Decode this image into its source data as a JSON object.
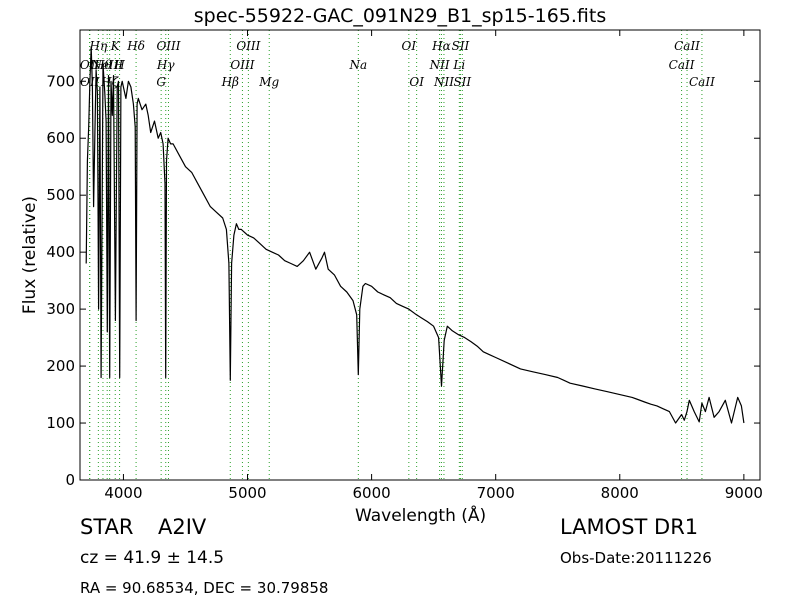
{
  "chart_data": {
    "type": "line",
    "title": "spec-55922-GAC_091N29_B1_sp15-165.fits",
    "xlabel": "Wavelength (Å)",
    "ylabel": "Flux (relative)",
    "xlim": [
      3650,
      9130
    ],
    "ylim": [
      0,
      790
    ],
    "xticks": [
      4000,
      5000,
      6000,
      7000,
      8000,
      9000
    ],
    "yticks": [
      0,
      100,
      200,
      300,
      400,
      500,
      600,
      700
    ],
    "grid": false,
    "line_color": "#000000",
    "marker_color": "#2ca02c",
    "series": [
      {
        "x": [
          3700,
          3710,
          3720,
          3730,
          3740,
          3750,
          3760,
          3770,
          3780,
          3790,
          3800,
          3810,
          3820,
          3835,
          3850,
          3860,
          3870,
          3880,
          3889,
          3900,
          3910,
          3920,
          3935,
          3950,
          3960,
          3970,
          3980,
          3990,
          4000,
          4020,
          4040,
          4060,
          4080,
          4095,
          4102,
          4110,
          4120,
          4150,
          4180,
          4200,
          4220,
          4250,
          4280,
          4300,
          4320,
          4335,
          4341,
          4347,
          4360,
          4380,
          4400,
          4450,
          4500,
          4550,
          4600,
          4650,
          4700,
          4750,
          4800,
          4830,
          4850,
          4861,
          4872,
          4890,
          4910,
          4930,
          4950,
          5000,
          5050,
          5100,
          5150,
          5200,
          5250,
          5300,
          5350,
          5400,
          5450,
          5500,
          5550,
          5600,
          5620,
          5650,
          5700,
          5750,
          5800,
          5850,
          5880,
          5893,
          5905,
          5930,
          5950,
          6000,
          6050,
          6100,
          6150,
          6200,
          6250,
          6300,
          6350,
          6400,
          6450,
          6500,
          6540,
          6563,
          6585,
          6610,
          6650,
          6700,
          6750,
          6800,
          6850,
          6900,
          6950,
          7000,
          7100,
          7200,
          7300,
          7400,
          7500,
          7550,
          7600,
          7700,
          7800,
          7900,
          8000,
          8100,
          8200,
          8250,
          8300,
          8350,
          8400,
          8450,
          8498,
          8520,
          8542,
          8560,
          8600,
          8640,
          8662,
          8690,
          8720,
          8760,
          8800,
          8850,
          8900,
          8950,
          8980,
          9000
        ],
        "y": [
          380,
          560,
          620,
          700,
          760,
          690,
          480,
          610,
          720,
          680,
          300,
          690,
          180,
          730,
          680,
          630,
          260,
          710,
          180,
          700,
          640,
          710,
          280,
          690,
          700,
          180,
          690,
          700,
          690,
          670,
          700,
          690,
          660,
          620,
          280,
          660,
          670,
          650,
          660,
          640,
          610,
          630,
          600,
          610,
          590,
          520,
          180,
          560,
          600,
          590,
          590,
          570,
          550,
          540,
          520,
          500,
          480,
          470,
          460,
          440,
          380,
          175,
          380,
          430,
          450,
          440,
          440,
          430,
          425,
          415,
          405,
          400,
          395,
          385,
          380,
          375,
          385,
          400,
          370,
          390,
          400,
          370,
          360,
          340,
          330,
          315,
          290,
          185,
          300,
          340,
          345,
          340,
          330,
          325,
          320,
          310,
          305,
          300,
          292,
          285,
          278,
          270,
          250,
          165,
          245,
          270,
          262,
          255,
          250,
          243,
          235,
          225,
          220,
          215,
          205,
          195,
          190,
          185,
          180,
          175,
          170,
          165,
          160,
          155,
          150,
          145,
          137,
          133,
          130,
          125,
          120,
          100,
          115,
          105,
          120,
          140,
          120,
          102,
          135,
          120,
          145,
          110,
          120,
          140,
          100,
          145,
          130,
          100
        ]
      }
    ],
    "line_markers": [
      {
        "wavelength": 3727,
        "label": "OII",
        "row": 1
      },
      {
        "wavelength": 3729,
        "label": "OII",
        "row": 2
      },
      {
        "wavelength": 3798,
        "label": "Hη",
        "row": 0
      },
      {
        "wavelength": 3835,
        "label": "Hθ",
        "row": 1
      },
      {
        "wavelength": 3869,
        "label": "NeIII",
        "row": 1
      },
      {
        "wavelength": 3889,
        "label": "Hζ",
        "row": 2
      },
      {
        "wavelength": 3934,
        "label": "K",
        "row": 0
      },
      {
        "wavelength": 3969,
        "label": "H",
        "row": 1
      },
      {
        "wavelength": 4102,
        "label": "Hδ",
        "row": 0
      },
      {
        "wavelength": 4304,
        "label": "G",
        "row": 2
      },
      {
        "wavelength": 4341,
        "label": "Hγ",
        "row": 1
      },
      {
        "wavelength": 4363,
        "label": "OIII",
        "row": 0
      },
      {
        "wavelength": 4861,
        "label": "Hβ",
        "row": 2
      },
      {
        "wavelength": 4959,
        "label": "OIII",
        "row": 1
      },
      {
        "wavelength": 5007,
        "label": "OIII",
        "row": 0
      },
      {
        "wavelength": 5175,
        "label": "Mg",
        "row": 2
      },
      {
        "wavelength": 5893,
        "label": "Na",
        "row": 1
      },
      {
        "wavelength": 6300,
        "label": "OI",
        "row": 0
      },
      {
        "wavelength": 6363,
        "label": "OI",
        "row": 2
      },
      {
        "wavelength": 6548,
        "label": "NII",
        "row": 1
      },
      {
        "wavelength": 6563,
        "label": "Hα",
        "row": 0
      },
      {
        "wavelength": 6583,
        "label": "NII",
        "row": 2
      },
      {
        "wavelength": 6707,
        "label": "Li",
        "row": 1
      },
      {
        "wavelength": 6716,
        "label": "SII",
        "row": 0
      },
      {
        "wavelength": 6731,
        "label": "SII",
        "row": 2
      },
      {
        "wavelength": 8498,
        "label": "CaII",
        "row": 1
      },
      {
        "wavelength": 8542,
        "label": "CaII",
        "row": 0
      },
      {
        "wavelength": 8662,
        "label": "CaII",
        "row": 2
      }
    ]
  },
  "info": {
    "class_label": "STAR",
    "subclass": "A2IV",
    "cz_text": "cz = 41.9 ± 14.5",
    "coords_text": "RA = 90.68534, DEC = 30.79858",
    "survey": "LAMOST DR1",
    "obs_date_text": "Obs-Date:20111226"
  }
}
